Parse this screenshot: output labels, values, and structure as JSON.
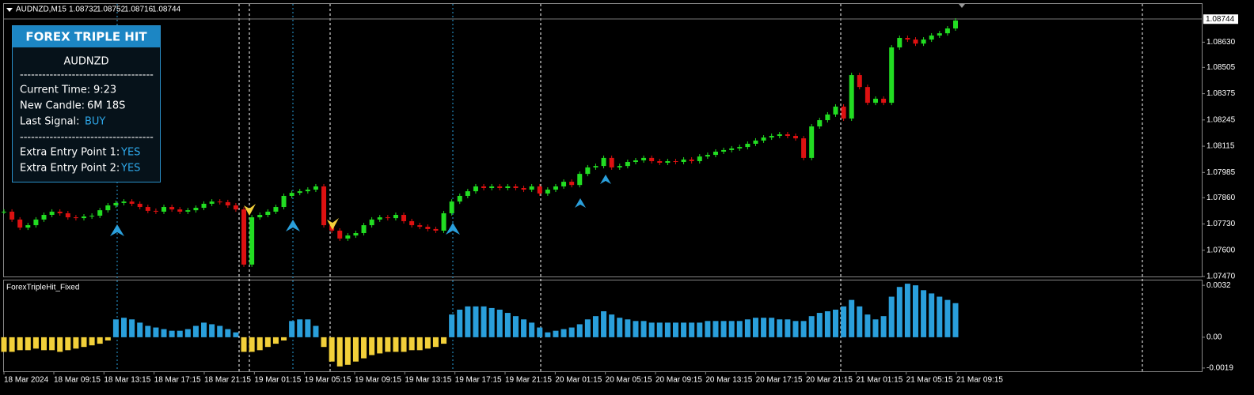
{
  "symbol_bar": {
    "symbol": "AUDNZD,M15",
    "ohlc": [
      1.08732,
      1.08752,
      1.08716,
      1.08744
    ]
  },
  "panel": {
    "title": "FOREX TRIPLE HIT",
    "symbol": "AUDNZD",
    "separator": "------------------------------------",
    "rows": [
      {
        "label": "Current Time:",
        "value": "9:23"
      },
      {
        "label": "New Candle:",
        "value": "6M 18S"
      },
      {
        "label": "Last Signal:",
        "value": "BUY"
      }
    ],
    "extra_rows": [
      {
        "label": "Extra Entry Point 1:",
        "value": "YES"
      },
      {
        "label": "Extra Entry Point 2:",
        "value": "YES"
      }
    ]
  },
  "chart_data": [
    {
      "type": "candlestick",
      "up_color": "#22dd22",
      "down_color": "#dd1111",
      "x_labels": [
        "18 Mar 2024",
        "18 Mar 09:15",
        "18 Mar 13:15",
        "18 Mar 17:15",
        "18 Mar 21:15",
        "19 Mar 01:15",
        "19 Mar 05:15",
        "19 Mar 09:15",
        "19 Mar 13:15",
        "19 Mar 17:15",
        "19 Mar 21:15",
        "20 Mar 01:15",
        "20 Mar 05:15",
        "20 Mar 09:15",
        "20 Mar 13:15",
        "20 Mar 17:15",
        "20 Mar 21:15",
        "21 Mar 01:15",
        "21 Mar 05:15",
        "21 Mar 09:15"
      ],
      "values": [
        1.07791,
        1.07752,
        1.07712,
        1.07724,
        1.07752,
        1.07775,
        1.07791,
        1.07783,
        1.07763,
        1.07759,
        1.07767,
        1.07771,
        1.07798,
        1.07822,
        1.07834,
        1.07841,
        1.0783,
        1.07814,
        1.07795,
        1.07791,
        1.07814,
        1.07802,
        1.07791,
        1.07798,
        1.0781,
        1.0783,
        1.07841,
        1.07838,
        1.07822,
        1.07802,
        1.07529,
        1.07763,
        1.07775,
        1.07791,
        1.07814,
        1.07869,
        1.07884,
        1.07892,
        1.079,
        1.07916,
        1.07724,
        1.07697,
        1.07658,
        1.07673,
        1.07685,
        1.07724,
        1.07752,
        1.07763,
        1.07759,
        1.07775,
        1.07744,
        1.07724,
        1.07716,
        1.07705,
        1.07697,
        1.07783,
        1.07841,
        1.07869,
        1.07892,
        1.07916,
        1.07908,
        1.07916,
        1.07908,
        1.07916,
        1.07908,
        1.079,
        1.07916,
        1.07881,
        1.079,
        1.07916,
        1.07939,
        1.07923,
        1.07978,
        1.0801,
        1.08017,
        1.08057,
        1.0801,
        1.08017,
        1.08037,
        1.08045,
        1.08057,
        1.08041,
        1.08033,
        1.08041,
        1.08037,
        1.08049,
        1.08041,
        1.08064,
        1.08072,
        1.08088,
        1.08096,
        1.08104,
        1.08111,
        1.08127,
        1.08143,
        1.08158,
        1.08166,
        1.08174,
        1.08166,
        1.08154,
        1.08057,
        1.08213,
        1.08244,
        1.08272,
        1.08311,
        1.08252,
        1.08467,
        1.08408,
        1.0833,
        1.0835,
        1.0833,
        1.08604,
        1.08651,
        1.08643,
        1.08623,
        1.08643,
        1.08663,
        1.08674,
        1.08698,
        1.08737
      ],
      "last_price": 1.08744,
      "ylim": [
        1.0747,
        1.08784
      ],
      "yticks": [
        {
          "value": 1.0863,
          "label": "1.08630"
        },
        1.08505,
        1.08375,
        1.08245,
        1.08115,
        1.07985,
        {
          "value": 1.0786,
          "label": "1.07860"
        },
        {
          "value": 1.0773,
          "label": "1.07730"
        },
        {
          "value": 1.076,
          "label": "1.07600"
        },
        {
          "value": 1.0747,
          "label": "1.07470"
        }
      ]
    },
    {
      "type": "bar",
      "title": "ForexTripleHit_Fixed",
      "positive_color": "#2a9fdb",
      "negative_color": "#f2d03a",
      "values": [
        -0.0009,
        -0.0009,
        -0.0008,
        -0.0008,
        -0.0007,
        -0.0008,
        -0.0008,
        -0.0009,
        -0.0008,
        -0.0007,
        -0.0006,
        -0.0005,
        -0.0004,
        -0.0002,
        0.0011,
        0.0012,
        0.0011,
        0.0009,
        0.0007,
        0.0006,
        0.0005,
        0.0004,
        0.0004,
        0.0005,
        0.0007,
        0.0009,
        0.0008,
        0.0007,
        0.0005,
        0.0003,
        -0.0009,
        -0.0009,
        -0.0008,
        -0.0006,
        -0.0004,
        -0.0002,
        0.001,
        0.0011,
        0.0011,
        0.0007,
        -0.0006,
        -0.0015,
        -0.0018,
        -0.0017,
        -0.0015,
        -0.0013,
        -0.0011,
        -0.001,
        -0.0009,
        -0.0009,
        -0.0009,
        -0.0008,
        -0.0008,
        -0.0007,
        -0.0006,
        -0.0004,
        0.0014,
        0.0017,
        0.0019,
        0.0019,
        0.0019,
        0.0018,
        0.0017,
        0.0015,
        0.0013,
        0.0011,
        0.0009,
        0.0006,
        0.0003,
        0.0004,
        0.0005,
        0.0006,
        0.0008,
        0.0011,
        0.0013,
        0.0016,
        0.0014,
        0.0012,
        0.0011,
        0.001,
        0.001,
        0.0009,
        0.0009,
        0.0009,
        0.0009,
        0.0009,
        0.0009,
        0.0009,
        0.001,
        0.001,
        0.001,
        0.001,
        0.001,
        0.0011,
        0.0012,
        0.0012,
        0.0012,
        0.0011,
        0.0011,
        0.001,
        0.001,
        0.0013,
        0.0015,
        0.0016,
        0.0017,
        0.0019,
        0.0023,
        0.0019,
        0.0014,
        0.0011,
        0.0013,
        0.0025,
        0.0031,
        0.0033,
        0.0032,
        0.0029,
        0.0027,
        0.0025,
        0.0023,
        0.0021
      ],
      "ylim": [
        -0.0021,
        0.0035
      ],
      "yticks": [
        0.0032,
        {
          "value": 0,
          "label": "0.00"
        },
        -0.0019
      ]
    }
  ]
}
